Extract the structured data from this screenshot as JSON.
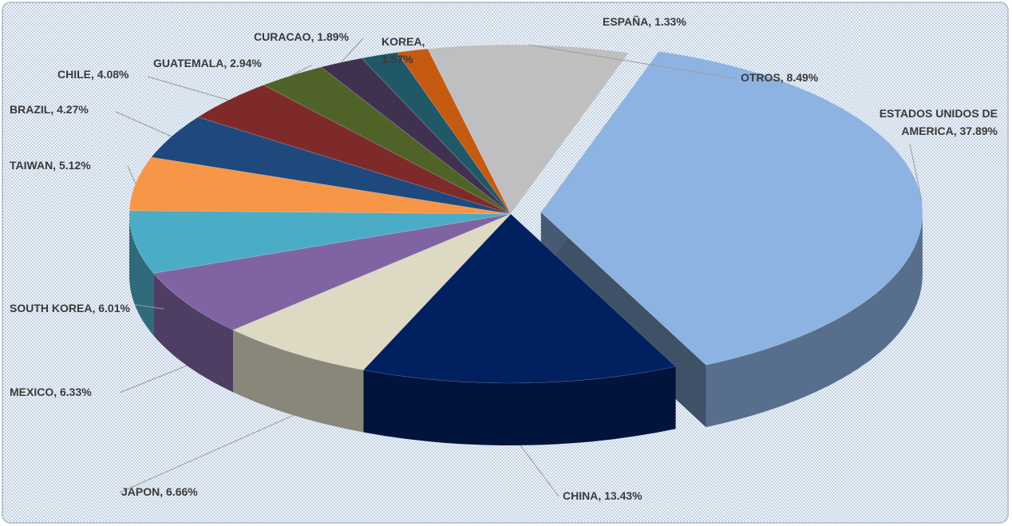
{
  "chart_data": {
    "type": "pie3d",
    "values": [
      37.89,
      13.43,
      6.66,
      6.33,
      6.01,
      5.12,
      4.27,
      4.08,
      2.94,
      1.89,
      1.57,
      1.33,
      8.49
    ],
    "value_labels": [
      "ESTADOS UNIDOS DE\nAMERICA, 37.89%",
      "CHINA, 13.43%",
      "JAPON, 6.66%",
      "MEXICO, 6.33%",
      "SOUTH KOREA, 6.01%",
      "TAIWAN, 5.12%",
      "BRAZIL, 4.27%",
      "CHILE, 4.08%",
      "GUATEMALA, 2.94%",
      "CURACAO, 1.89%",
      "KOREA,\n1.57%",
      "ESPAÑA, 1.33%",
      "OTROS, 8.49%"
    ],
    "colors": [
      "#8db3e2",
      "#002060",
      "#ddd9c3",
      "#8064a2",
      "#4bacc6",
      "#f79646",
      "#1f497d",
      "#7f2a2a",
      "#4f6228",
      "#403151",
      "#215868",
      "#c55a11",
      "#bfbfbf"
    ],
    "exploded": [
      0
    ]
  }
}
